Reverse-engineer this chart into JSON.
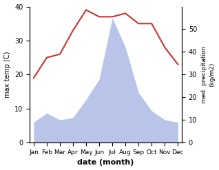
{
  "months": [
    "Jan",
    "Feb",
    "Mar",
    "Apr",
    "May",
    "Jun",
    "Jul",
    "Aug",
    "Sep",
    "Oct",
    "Nov",
    "Dec"
  ],
  "temp": [
    19,
    25,
    26,
    33,
    39,
    37,
    37,
    38,
    35,
    35,
    28,
    23
  ],
  "precip": [
    9,
    13,
    10,
    11,
    19,
    28,
    55,
    42,
    22,
    14,
    10,
    9
  ],
  "temp_color": "#cd3232",
  "precip_color_fill": "#b8c4e8",
  "ylabel_left": "max temp (C)",
  "ylabel_right": "med. precipitation\n(kg/m2)",
  "xlabel": "date (month)",
  "ylim_left": [
    0,
    40
  ],
  "ylim_right": [
    0,
    60
  ],
  "yticks_left": [
    0,
    10,
    20,
    30,
    40
  ],
  "yticks_right": [
    0,
    10,
    20,
    30,
    40,
    50
  ],
  "background_color": "#ffffff"
}
